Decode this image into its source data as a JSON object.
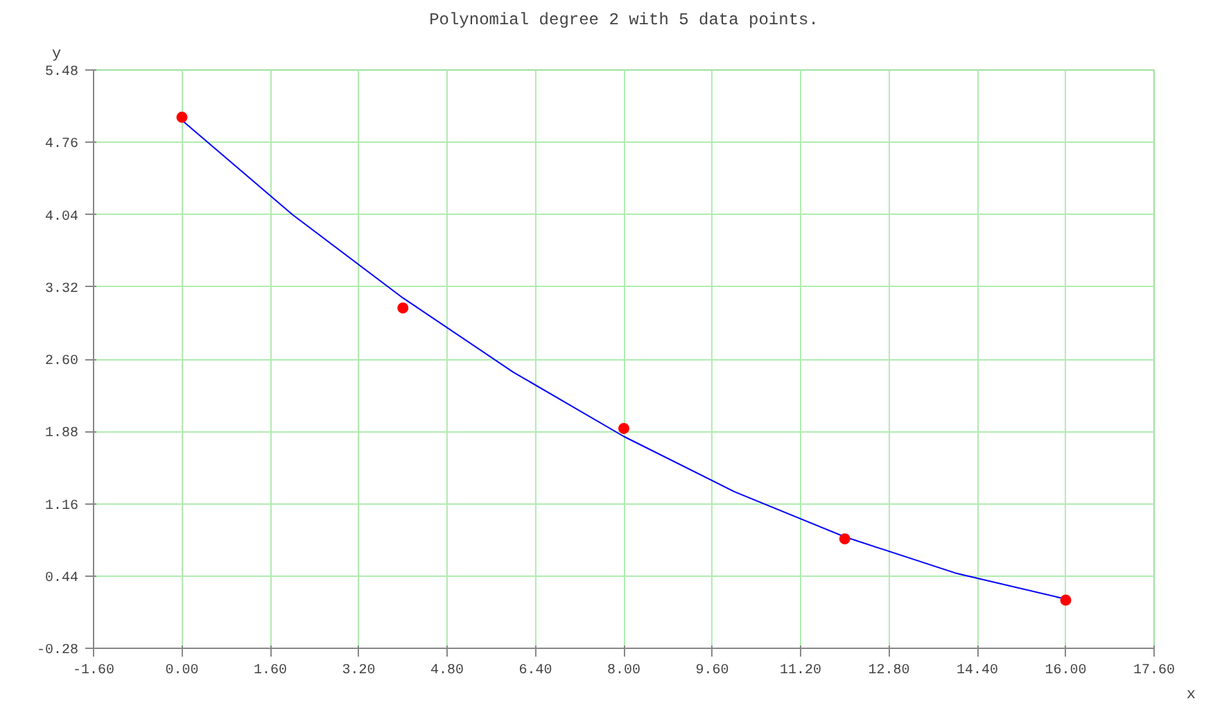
{
  "chart_data": {
    "type": "scatter",
    "title": "Polynomial degree 2 with 5 data points.",
    "xlabel": "x",
    "ylabel": "y",
    "xlim": [
      -1.6,
      17.6
    ],
    "ylim": [
      -0.28,
      5.48
    ],
    "xticks": [
      {
        "value": -1.6,
        "label": "-1.60"
      },
      {
        "value": 0,
        "label": "0.00"
      },
      {
        "value": 1.6,
        "label": "1.60"
      },
      {
        "value": 3.2,
        "label": "3.20"
      },
      {
        "value": 4.8,
        "label": "4.80"
      },
      {
        "value": 6.4,
        "label": "6.40"
      },
      {
        "value": 8,
        "label": "8.00"
      },
      {
        "value": 9.6,
        "label": "9.60"
      },
      {
        "value": 11.2,
        "label": "11.20"
      },
      {
        "value": 12.8,
        "label": "12.80"
      },
      {
        "value": 14.4,
        "label": "14.40"
      },
      {
        "value": 16,
        "label": "16.00"
      },
      {
        "value": 17.6,
        "label": "17.60"
      }
    ],
    "yticks": [
      {
        "value": -0.28,
        "label": "-0.28"
      },
      {
        "value": 0.44,
        "label": "0.44"
      },
      {
        "value": 1.16,
        "label": "1.16"
      },
      {
        "value": 1.88,
        "label": "1.88"
      },
      {
        "value": 2.6,
        "label": "2.60"
      },
      {
        "value": 3.32,
        "label": "3.32"
      },
      {
        "value": 4.04,
        "label": "4.04"
      },
      {
        "value": 4.76,
        "label": "4.76"
      },
      {
        "value": 5.48,
        "label": "5.48"
      }
    ],
    "grid": true,
    "marker": "circle",
    "series": [
      {
        "type": "line",
        "marker": "none",
        "color": "#0000ff",
        "x": [
          0,
          2,
          4,
          6,
          8,
          10,
          12,
          14,
          16
        ],
        "values": [
          4.98,
          4.04,
          3.21,
          2.47,
          1.83,
          1.28,
          0.83,
          0.47,
          0.21
        ]
      },
      {
        "color": "#ff0000",
        "x": [
          0,
          4,
          8,
          12,
          16
        ],
        "values": [
          5.01,
          3.11,
          1.91,
          0.81,
          0.2
        ]
      }
    ]
  }
}
